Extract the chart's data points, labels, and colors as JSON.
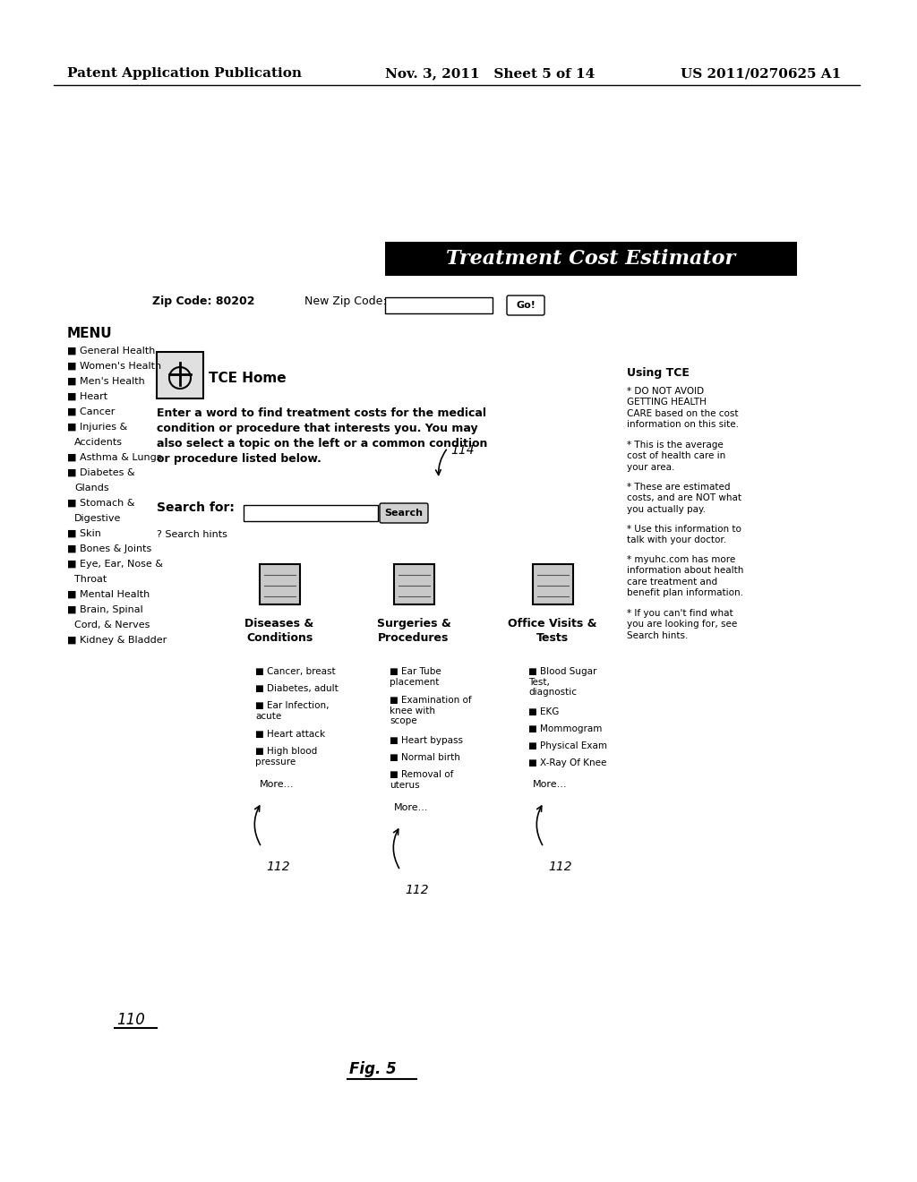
{
  "header_left": "Patent Application Publication",
  "header_mid": "Nov. 3, 2011   Sheet 5 of 14",
  "header_right": "US 2011/0270625 A1",
  "title_banner": "Treatment Cost Estimator",
  "menu_label": "MENU",
  "menu_items": [
    "General Health",
    "Women's Health",
    "Men's Health",
    "Heart",
    "Cancer",
    "Injuries &\n  Accidents",
    "Asthma & Lungs",
    "Diabetes &\n  Glands",
    "Stomach &\n  Digestive",
    "Skin",
    "Bones & Joints",
    "Eye, Ear, Nose &\n  Throat",
    "Mental Health",
    "Brain, Spinal\n  Cord, & Nerves",
    "Kidney & Bladder"
  ],
  "zip_label": "Zip Code: 80202",
  "new_zip_label": "New Zip Code:",
  "tce_home_label": "TCE Home",
  "intro_text": "Enter a word to find treatment costs for the medical\ncondition or procedure that interests you. You may\nalso select a topic on the left or a common condition\nor procedure listed below.",
  "search_for_label": "Search for:",
  "search_hints_label": "? Search hints",
  "using_tce_label": "Using TCE",
  "using_tce_bullets": [
    "* DO NOT AVOID\nGETTING HEALTH\nCARE based on the cost\ninformation on this site.",
    "* This is the average\ncost of health care in\nyour area.",
    "* These are estimated\ncosts, and are NOT what\nyou actually pay.",
    "* Use this information to\ntalk with your doctor.",
    "* myuhc.com has more\ninformation about health\ncare treatment and\nbenefit plan information.",
    "* If you can't find what\nyou are looking for, see\nSearch hints."
  ],
  "col1_title": "Diseases &\nConditions",
  "col1_items": [
    "Cancer, breast",
    "Diabetes, adult",
    "Ear Infection,\nacute",
    "Heart attack",
    "High blood\npressure"
  ],
  "col1_more": "More...",
  "col2_title": "Surgeries &\nProcedures",
  "col2_items": [
    "Ear Tube\nplacement",
    "Examination of\nknee with\nscope",
    "Heart bypass",
    "Normal birth",
    "Removal of\nuterus"
  ],
  "col2_more": "More...",
  "col3_title": "Office Visits &\nTests",
  "col3_items": [
    "Blood Sugar\nTest,\ndiagnostic",
    "EKG",
    "Mommogram",
    "Physical Exam",
    "X-Ray Of Knee"
  ],
  "col3_more": "More...",
  "ref_110": "110",
  "ref_112_labels": [
    "112",
    "112",
    "112"
  ],
  "ref_114": "114",
  "fig_label": "Fig. 5",
  "bg_color": "#ffffff",
  "text_color": "#000000",
  "banner_bg": "#000000",
  "banner_text_color": "#ffffff"
}
